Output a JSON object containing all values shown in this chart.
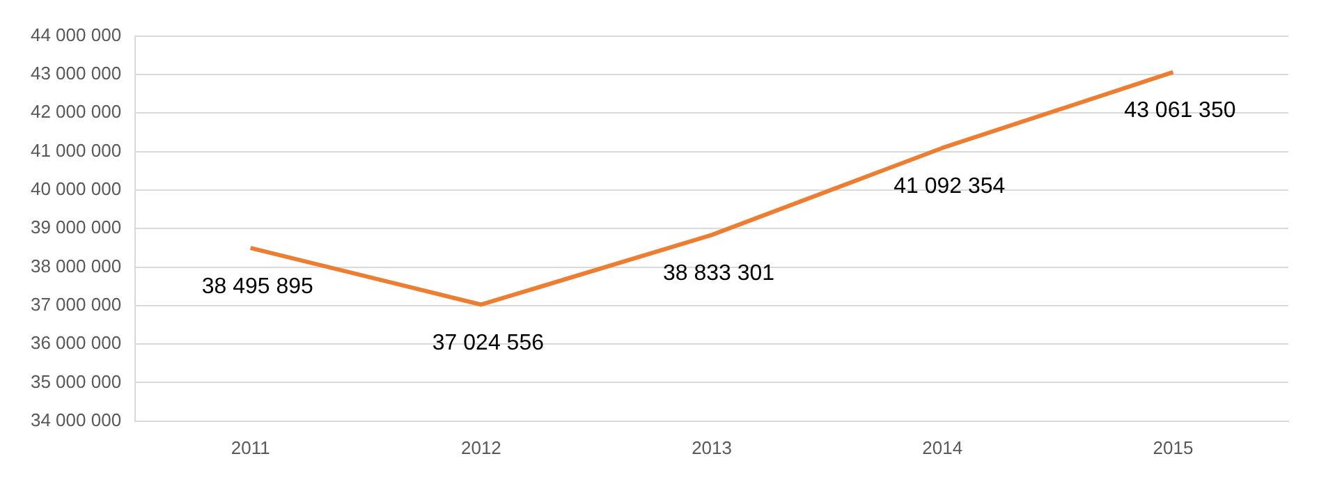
{
  "chart_data": {
    "type": "line",
    "categories": [
      "2011",
      "2012",
      "2013",
      "2014",
      "2015"
    ],
    "series": [
      {
        "color": "#ed7d31",
        "values": [
          38495895,
          37024556,
          38833301,
          41092354,
          43061350
        ],
        "value_labels": [
          "38 495 895",
          "37 024 556",
          "38 833 301",
          "41 092 354",
          "43 061 350"
        ]
      }
    ],
    "ylim": [
      34000000,
      44000000
    ],
    "yticks": [
      {
        "value": 34000000,
        "label": "34 000 000"
      },
      {
        "value": 35000000,
        "label": "35 000 000"
      },
      {
        "value": 36000000,
        "label": "36 000 000"
      },
      {
        "value": 37000000,
        "label": "37 000 000"
      },
      {
        "value": 38000000,
        "label": "38 000 000"
      },
      {
        "value": 39000000,
        "label": "39 000 000"
      },
      {
        "value": 40000000,
        "label": "40 000 000"
      },
      {
        "value": 41000000,
        "label": "41 000 000"
      },
      {
        "value": 42000000,
        "label": "42 000 000"
      },
      {
        "value": 43000000,
        "label": "43 000 000"
      },
      {
        "value": 44000000,
        "label": "44 000 000"
      }
    ],
    "grid": "y",
    "legend": false,
    "marker": "none",
    "line_style": "solid"
  }
}
